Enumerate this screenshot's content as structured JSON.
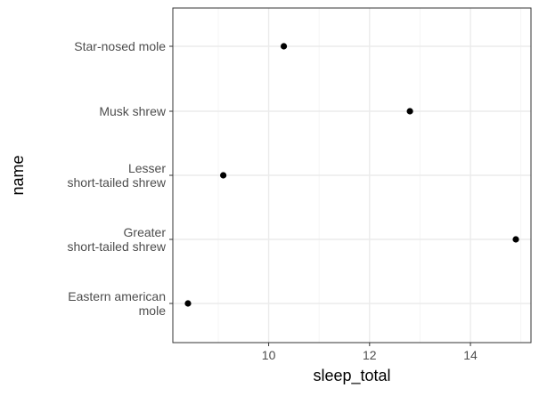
{
  "chart_data": {
    "type": "scatter",
    "title": "",
    "xlabel": "sleep_total",
    "ylabel": "name",
    "xlim": [
      8.1,
      15.2
    ],
    "x_ticks": [
      10,
      12,
      14
    ],
    "x_tick_labels": [
      "10",
      "12",
      "14"
    ],
    "y_categories_top_to_bottom": [
      "Star-nosed mole",
      "Musk shrew",
      "Lesser short-tailed shrew",
      "Greater short-tailed shrew",
      "Eastern american mole"
    ],
    "y_tick_labels": [
      [
        "Star-nosed mole"
      ],
      [
        "Musk shrew"
      ],
      [
        "Lesser",
        "short-tailed shrew"
      ],
      [
        "Greater",
        "short-tailed shrew"
      ],
      [
        "Eastern american",
        "mole"
      ]
    ],
    "points": [
      {
        "name": "Star-nosed mole",
        "sleep_total": 10.3
      },
      {
        "name": "Musk shrew",
        "sleep_total": 12.8
      },
      {
        "name": "Lesser short-tailed shrew",
        "sleep_total": 9.1
      },
      {
        "name": "Greater short-tailed shrew",
        "sleep_total": 14.9
      },
      {
        "name": "Eastern american mole",
        "sleep_total": 8.4
      }
    ],
    "grid": true,
    "theme": "bw",
    "point_color": "#000000",
    "grid_major_color": "#ebebeb",
    "grid_minor_color": "#f5f5f5",
    "panel_border_color": "#333333",
    "text_color": "#4d4d4d",
    "title_color": "#000000"
  }
}
